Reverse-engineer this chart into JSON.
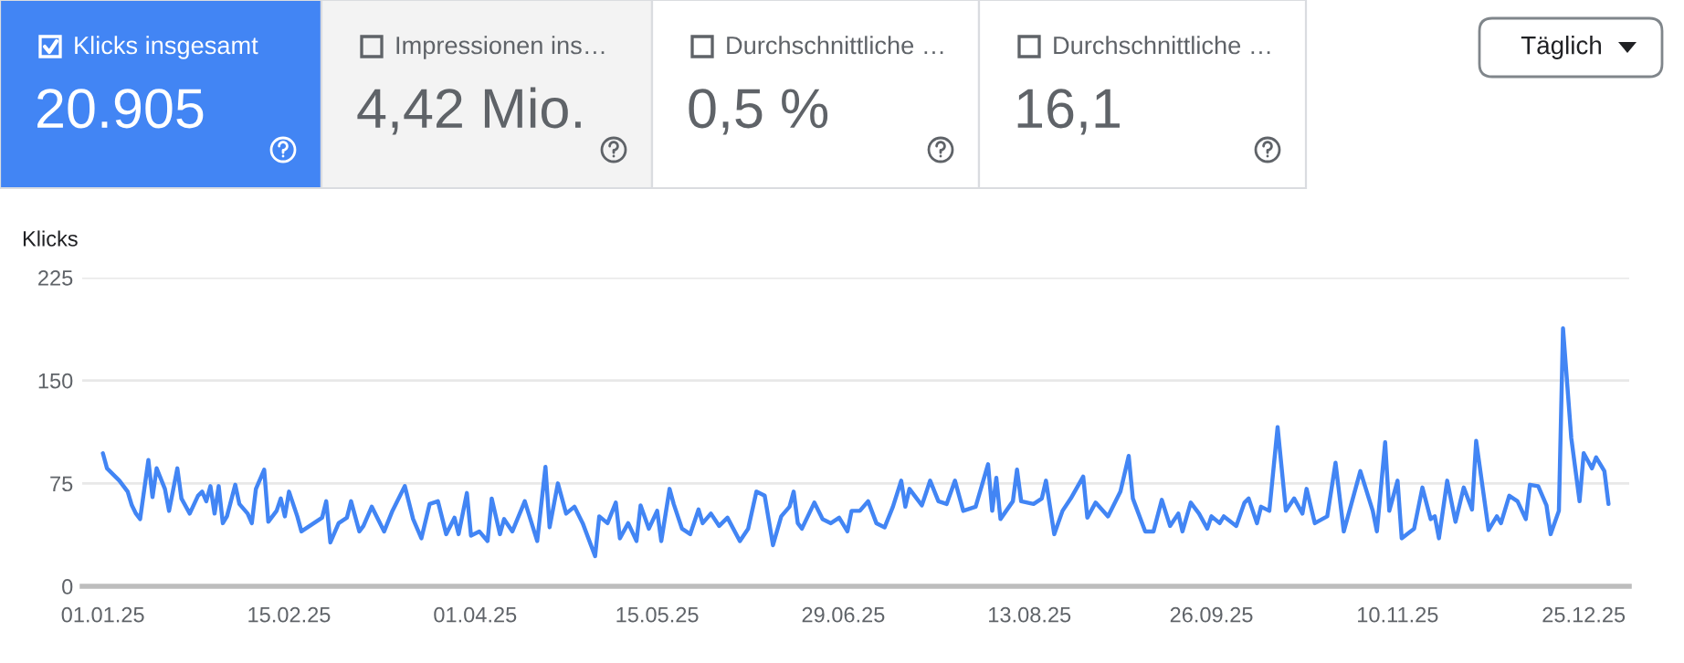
{
  "chart_data": [
    {
      "type": "other",
      "annotations": [
        "Klicks insgesamt",
        "20.905",
        "Impressionen ins…",
        "4,42 Mio.",
        "Durchschnittliche …",
        "0,5 %",
        "Durchschnittliche …",
        "16,1",
        "Täglich"
      ],
      "colors": [
        "#4285f4",
        "#f3f3f3",
        "#ffffff",
        "#ffffff"
      ]
    },
    {
      "type": "line",
      "ylabel": "Klicks",
      "color": "#4285f4",
      "grid": "y",
      "xlim": [
        "2024-12-27",
        "2026-01-05"
      ],
      "ylim": [
        0,
        225
      ],
      "yticks": [
        0,
        75,
        150,
        225
      ],
      "xticks": [
        {
          "value": "2025-01-01",
          "label": "01.01.25"
        },
        {
          "value": "2025-02-15",
          "label": "15.02.25"
        },
        {
          "value": "2025-04-01",
          "label": "01.04.25"
        },
        {
          "value": "2025-05-15",
          "label": "15.05.25"
        },
        {
          "value": "2025-06-29",
          "label": "29.06.25"
        },
        {
          "value": "2025-08-13",
          "label": "13.08.25"
        },
        {
          "value": "2025-09-26",
          "label": "26.09.25"
        },
        {
          "value": "2025-11-10",
          "label": "10.11.25"
        },
        {
          "value": "2025-12-25",
          "label": "25.12.25"
        }
      ],
      "x": [
        "2025-01-01",
        "2025-01-02",
        "2025-01-04",
        "2025-01-05",
        "2025-01-07",
        "2025-01-08",
        "2025-01-09",
        "2025-01-10",
        "2025-01-12",
        "2025-01-13",
        "2025-01-14",
        "2025-01-16",
        "2025-01-17",
        "2025-01-19",
        "2025-01-20",
        "2025-01-22",
        "2025-01-24",
        "2025-01-25",
        "2025-01-26",
        "2025-01-27",
        "2025-01-28",
        "2025-01-29",
        "2025-01-30",
        "2025-01-31",
        "2025-02-02",
        "2025-02-03",
        "2025-02-05",
        "2025-02-06",
        "2025-02-07",
        "2025-02-09",
        "2025-02-10",
        "2025-02-12",
        "2025-02-13",
        "2025-02-14",
        "2025-02-15",
        "2025-02-17",
        "2025-02-18",
        "2025-02-21",
        "2025-02-23",
        "2025-02-24",
        "2025-02-25",
        "2025-02-27",
        "2025-03-01",
        "2025-03-02",
        "2025-03-04",
        "2025-03-05",
        "2025-03-07",
        "2025-03-10",
        "2025-03-12",
        "2025-03-15",
        "2025-03-17",
        "2025-03-19",
        "2025-03-21",
        "2025-03-23",
        "2025-03-25",
        "2025-03-27",
        "2025-03-28",
        "2025-03-30",
        "2025-03-31",
        "2025-04-02",
        "2025-04-04",
        "2025-04-05",
        "2025-04-07",
        "2025-04-08",
        "2025-04-10",
        "2025-04-13",
        "2025-04-16",
        "2025-04-18",
        "2025-04-19",
        "2025-04-21",
        "2025-04-23",
        "2025-04-25",
        "2025-04-27",
        "2025-04-30",
        "2025-05-01",
        "2025-05-03",
        "2025-05-05",
        "2025-05-06",
        "2025-05-08",
        "2025-05-10",
        "2025-05-11",
        "2025-05-13",
        "2025-05-15",
        "2025-05-16",
        "2025-05-18",
        "2025-05-19",
        "2025-05-21",
        "2025-05-23",
        "2025-05-25",
        "2025-05-26",
        "2025-05-28",
        "2025-05-30",
        "2025-06-01",
        "2025-06-04",
        "2025-06-06",
        "2025-06-08",
        "2025-06-10",
        "2025-06-12",
        "2025-06-14",
        "2025-06-16",
        "2025-06-17",
        "2025-06-18",
        "2025-06-19",
        "2025-06-22",
        "2025-06-24",
        "2025-06-26",
        "2025-06-28",
        "2025-06-30",
        "2025-07-01",
        "2025-07-03",
        "2025-07-05",
        "2025-07-07",
        "2025-07-09",
        "2025-07-11",
        "2025-07-13",
        "2025-07-14",
        "2025-07-15",
        "2025-07-18",
        "2025-07-20",
        "2025-07-22",
        "2025-07-24",
        "2025-07-26",
        "2025-07-28",
        "2025-07-31",
        "2025-08-03",
        "2025-08-04",
        "2025-08-05",
        "2025-08-06",
        "2025-08-09",
        "2025-08-10",
        "2025-08-11",
        "2025-08-14",
        "2025-08-16",
        "2025-08-17",
        "2025-08-19",
        "2025-08-21",
        "2025-08-23",
        "2025-08-26",
        "2025-08-27",
        "2025-08-29",
        "2025-09-01",
        "2025-09-04",
        "2025-09-06",
        "2025-09-07",
        "2025-09-10",
        "2025-09-12",
        "2025-09-14",
        "2025-09-16",
        "2025-09-18",
        "2025-09-19",
        "2025-09-21",
        "2025-09-23",
        "2025-09-25",
        "2025-09-26",
        "2025-09-28",
        "2025-09-29",
        "2025-10-02",
        "2025-10-04",
        "2025-10-05",
        "2025-10-07",
        "2025-10-08",
        "2025-10-10",
        "2025-10-12",
        "2025-10-14",
        "2025-10-16",
        "2025-10-18",
        "2025-10-19",
        "2025-10-21",
        "2025-10-24",
        "2025-10-26",
        "2025-10-28",
        "2025-11-01",
        "2025-11-04",
        "2025-11-05",
        "2025-11-07",
        "2025-11-08",
        "2025-11-10",
        "2025-11-11",
        "2025-11-14",
        "2025-11-16",
        "2025-11-18",
        "2025-11-19",
        "2025-11-20",
        "2025-11-22",
        "2025-11-24",
        "2025-11-26",
        "2025-11-28",
        "2025-11-29",
        "2025-12-02",
        "2025-12-04",
        "2025-12-05",
        "2025-12-07",
        "2025-12-09",
        "2025-12-11",
        "2025-12-12",
        "2025-12-14",
        "2025-12-16",
        "2025-12-17",
        "2025-12-19",
        "2025-12-20",
        "2025-12-22",
        "2025-12-24",
        "2025-12-25",
        "2025-12-27",
        "2025-12-28",
        "2025-12-30",
        "2025-12-31"
      ],
      "values": [
        97,
        86,
        80,
        77,
        69,
        59,
        53,
        49,
        92,
        65,
        86,
        71,
        55,
        86,
        64,
        53,
        66,
        69,
        62,
        73,
        53,
        73,
        46,
        51,
        74,
        60,
        53,
        46,
        71,
        85,
        47,
        55,
        64,
        51,
        69,
        51,
        40,
        46,
        50,
        62,
        32,
        46,
        50,
        62,
        40,
        44,
        58,
        40,
        55,
        73,
        49,
        35,
        60,
        62,
        38,
        50,
        38,
        68,
        37,
        40,
        33,
        64,
        38,
        49,
        40,
        62,
        33,
        87,
        43,
        75,
        53,
        58,
        46,
        22,
        51,
        46,
        61,
        35,
        46,
        33,
        59,
        42,
        55,
        33,
        71,
        60,
        42,
        38,
        56,
        46,
        53,
        44,
        50,
        33,
        42,
        69,
        66,
        30,
        51,
        58,
        69,
        46,
        42,
        61,
        49,
        46,
        50,
        40,
        55,
        55,
        62,
        46,
        43,
        58,
        77,
        58,
        71,
        59,
        77,
        62,
        60,
        77,
        55,
        58,
        89,
        55,
        79,
        49,
        62,
        85,
        62,
        60,
        64,
        77,
        38,
        55,
        64,
        80,
        50,
        61,
        51,
        69,
        95,
        64,
        40,
        40,
        63,
        44,
        53,
        40,
        61,
        53,
        42,
        51,
        46,
        51,
        44,
        61,
        64,
        46,
        58,
        55,
        116,
        55,
        64,
        53,
        71,
        46,
        51,
        90,
        40,
        84,
        55,
        40,
        105,
        55,
        77,
        35,
        42,
        72,
        49,
        51,
        35,
        77,
        47,
        72,
        56,
        106,
        41,
        51,
        46,
        66,
        62,
        49,
        74,
        73,
        59,
        38,
        55,
        188,
        108,
        62,
        97,
        86,
        94,
        84,
        60
      ]
    }
  ]
}
